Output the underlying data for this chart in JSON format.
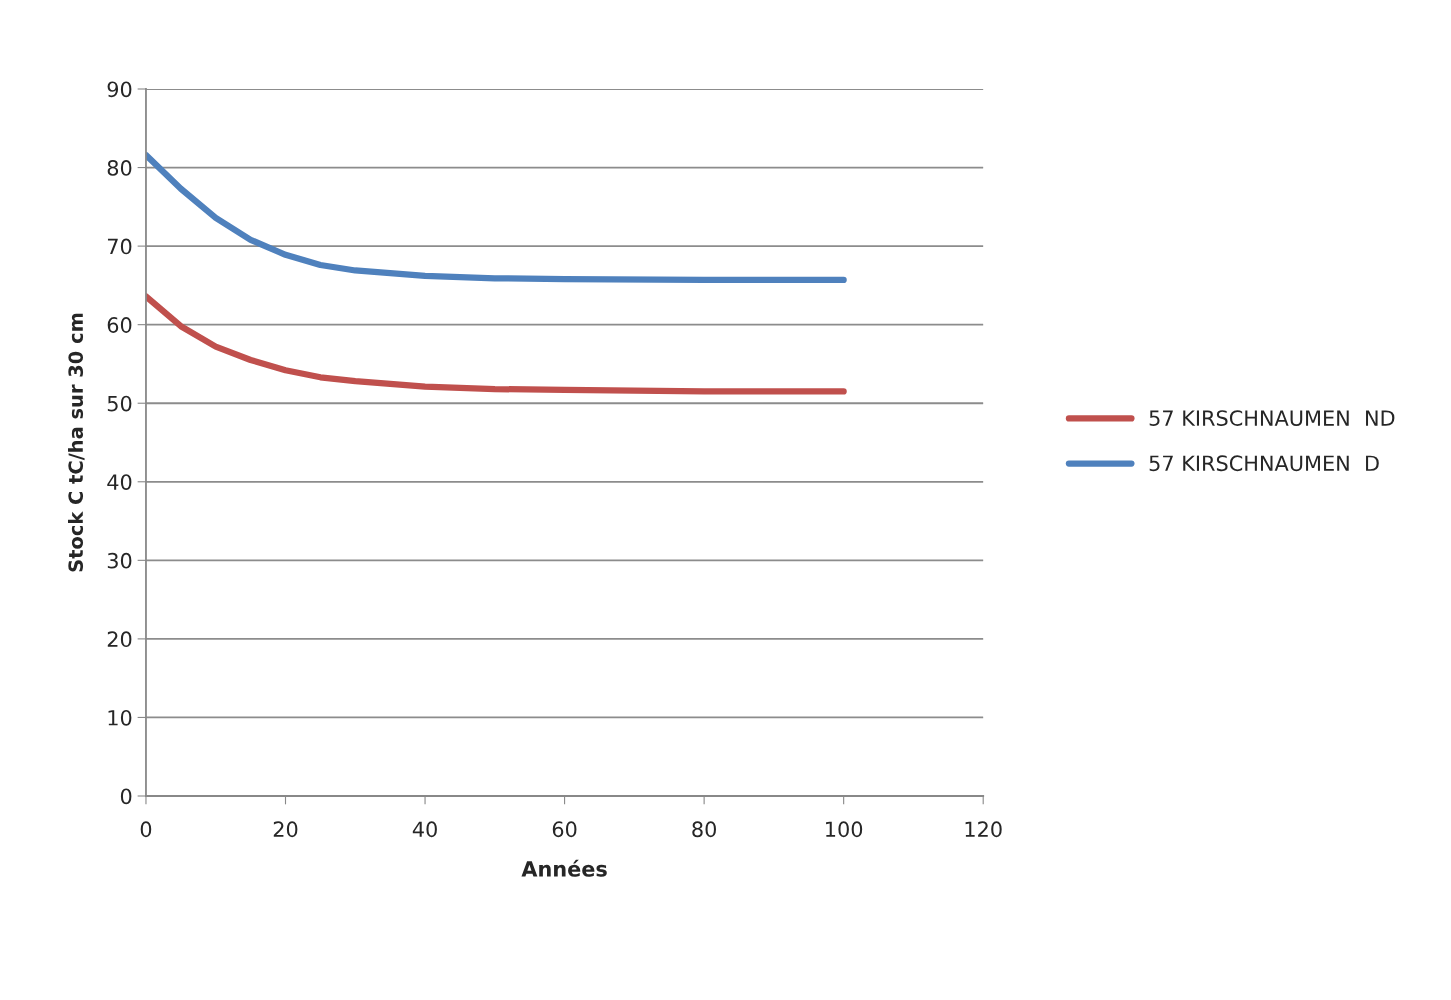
{
  "chart_data": {
    "type": "line",
    "xlabel": "Années",
    "ylabel": "Stock C tC/ha sur 30 cm",
    "x": [
      0,
      5,
      10,
      15,
      20,
      25,
      30,
      40,
      50,
      60,
      80,
      100
    ],
    "series": [
      {
        "name": "57 KIRSCHNAUMEN  ND",
        "color": "#c0504d",
        "values": [
          63.6,
          59.8,
          57.2,
          55.5,
          54.2,
          53.3,
          52.8,
          52.1,
          51.8,
          51.7,
          51.5,
          51.5
        ]
      },
      {
        "name": "57 KIRSCHNAUMEN  D",
        "color": "#4f81bd",
        "values": [
          81.6,
          77.3,
          73.6,
          70.8,
          68.9,
          67.6,
          66.9,
          66.2,
          65.9,
          65.8,
          65.7,
          65.7
        ]
      }
    ],
    "xlim": [
      0,
      120
    ],
    "xticks": [
      0,
      20,
      40,
      60,
      80,
      100,
      120
    ],
    "ylim": [
      0,
      90
    ],
    "yticks": [
      0,
      10,
      20,
      30,
      40,
      50,
      60,
      70,
      80,
      90
    ],
    "grid": "y",
    "legend": "right",
    "marker": "none",
    "line_style": "solid"
  }
}
